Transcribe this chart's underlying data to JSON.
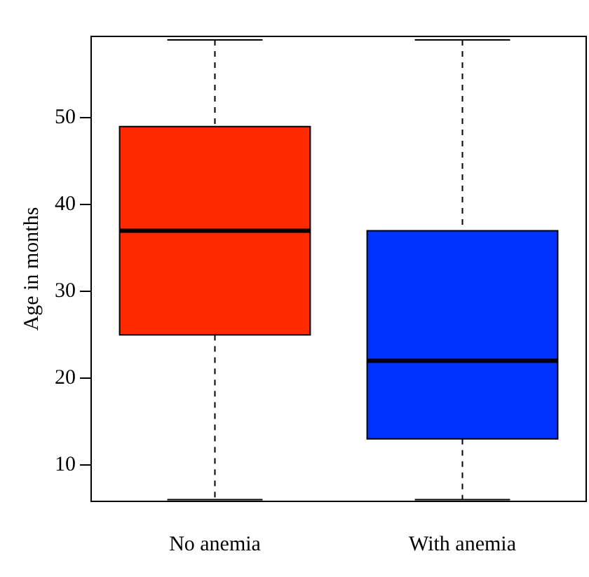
{
  "chart_data": {
    "type": "box",
    "ylabel": "Age in months",
    "categories": [
      "No anemia",
      "With anemia"
    ],
    "colors": [
      "#ff2a00",
      "#0033ff"
    ],
    "boxes": [
      {
        "low": 6,
        "q1": 25,
        "median": 37,
        "q3": 49,
        "high": 59
      },
      {
        "low": 6,
        "q1": 13,
        "median": 22,
        "q3": 37,
        "high": 59
      }
    ],
    "ylim": [
      5.8,
      59.4
    ],
    "yticks": [
      10,
      20,
      30,
      40,
      50
    ]
  }
}
